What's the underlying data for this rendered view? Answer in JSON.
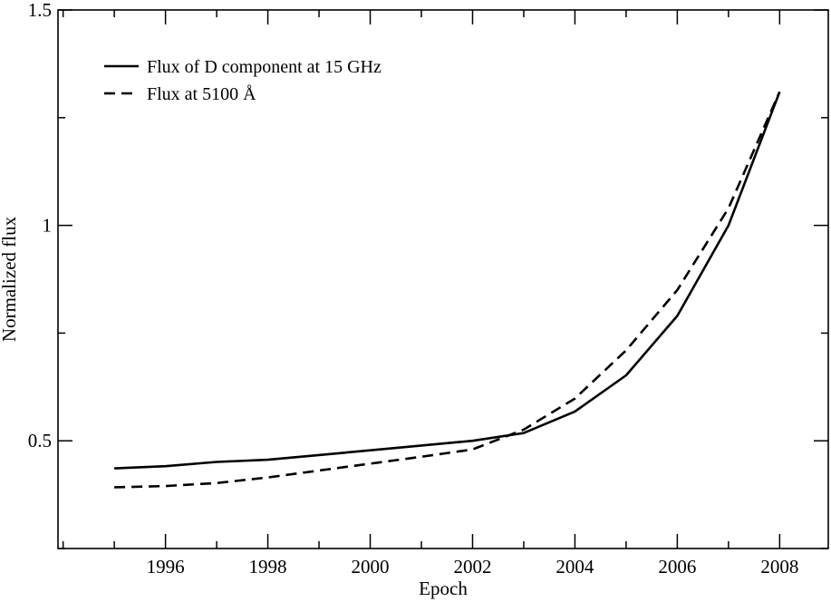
{
  "chart_data": {
    "type": "line",
    "title": "",
    "xlabel": "Epoch",
    "ylabel": "Normalized flux",
    "xlim": [
      1993.9,
      2008.95
    ],
    "ylim": [
      0.25,
      1.5
    ],
    "xticks": [
      1996,
      1998,
      2000,
      2002,
      2004,
      2006,
      2008
    ],
    "xtick_labels": [
      "1996",
      "1998",
      "2000",
      "2002",
      "2004",
      "2006",
      "2008"
    ],
    "yticks": [
      0.5,
      1,
      1.5
    ],
    "ytick_labels": [
      "0.5",
      "1",
      "1.5"
    ],
    "grid": false,
    "legend_position": "top-left",
    "series": [
      {
        "name": "Flux of D component at 15 GHz",
        "style": "solid",
        "color": "#000000",
        "x": [
          1995,
          1996,
          1997,
          1998,
          1999,
          2000,
          2001,
          2002,
          2003,
          2004,
          2005,
          2006,
          2007,
          2008
        ],
        "y": [
          0.436,
          0.441,
          0.451,
          0.456,
          0.467,
          0.478,
          0.489,
          0.5,
          0.518,
          0.568,
          0.652,
          0.79,
          1.0,
          1.31
        ]
      },
      {
        "name": "Flux at 5100 Å",
        "style": "dashed",
        "color": "#000000",
        "x": [
          1995,
          1996,
          1997,
          1998,
          1999,
          2000,
          2001,
          2002,
          2003,
          2004,
          2005,
          2006,
          2007,
          2008
        ],
        "y": [
          0.392,
          0.395,
          0.402,
          0.415,
          0.431,
          0.447,
          0.463,
          0.48,
          0.526,
          0.598,
          0.71,
          0.85,
          1.04,
          1.31
        ]
      }
    ]
  }
}
